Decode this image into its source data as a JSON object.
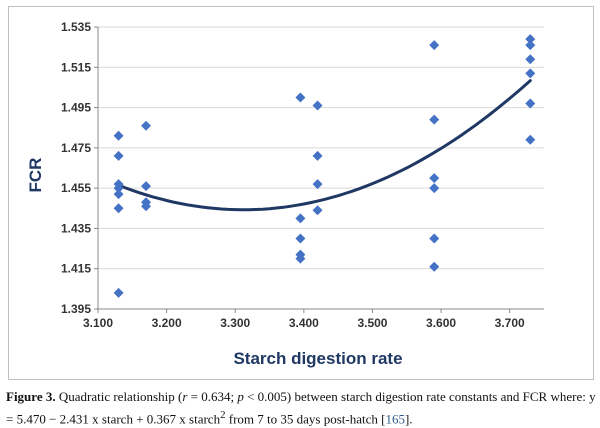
{
  "chart_data": {
    "type": "scatter",
    "xlabel": "Starch digestion rate",
    "ylabel": "FCR",
    "xlim": [
      3.1,
      3.75
    ],
    "ylim": [
      1.395,
      1.535
    ],
    "x_ticks": [
      "3.100",
      "3.200",
      "3.300",
      "3.400",
      "3.500",
      "3.600",
      "3.700"
    ],
    "x_tick_values": [
      3.1,
      3.2,
      3.3,
      3.4,
      3.5,
      3.6,
      3.7
    ],
    "y_ticks": [
      "1.395",
      "1.415",
      "1.435",
      "1.455",
      "1.475",
      "1.495",
      "1.515",
      "1.535"
    ],
    "y_tick_values": [
      1.395,
      1.415,
      1.435,
      1.455,
      1.475,
      1.495,
      1.515,
      1.535
    ],
    "grid": "horizontal",
    "marker_color": "#4472c4",
    "trend_color": "#1f3864",
    "points": [
      {
        "x": 3.13,
        "y": 1.481
      },
      {
        "x": 3.13,
        "y": 1.471
      },
      {
        "x": 3.13,
        "y": 1.457
      },
      {
        "x": 3.13,
        "y": 1.455
      },
      {
        "x": 3.13,
        "y": 1.452
      },
      {
        "x": 3.13,
        "y": 1.445
      },
      {
        "x": 3.13,
        "y": 1.403
      },
      {
        "x": 3.17,
        "y": 1.486
      },
      {
        "x": 3.17,
        "y": 1.456
      },
      {
        "x": 3.17,
        "y": 1.448
      },
      {
        "x": 3.17,
        "y": 1.446
      },
      {
        "x": 3.395,
        "y": 1.5
      },
      {
        "x": 3.395,
        "y": 1.44
      },
      {
        "x": 3.395,
        "y": 1.43
      },
      {
        "x": 3.395,
        "y": 1.422
      },
      {
        "x": 3.395,
        "y": 1.42
      },
      {
        "x": 3.42,
        "y": 1.496
      },
      {
        "x": 3.42,
        "y": 1.471
      },
      {
        "x": 3.42,
        "y": 1.457
      },
      {
        "x": 3.42,
        "y": 1.444
      },
      {
        "x": 3.59,
        "y": 1.526
      },
      {
        "x": 3.59,
        "y": 1.489
      },
      {
        "x": 3.59,
        "y": 1.46
      },
      {
        "x": 3.59,
        "y": 1.455
      },
      {
        "x": 3.59,
        "y": 1.43
      },
      {
        "x": 3.59,
        "y": 1.416
      },
      {
        "x": 3.73,
        "y": 1.529
      },
      {
        "x": 3.73,
        "y": 1.526
      },
      {
        "x": 3.73,
        "y": 1.519
      },
      {
        "x": 3.73,
        "y": 1.512
      },
      {
        "x": 3.73,
        "y": 1.497
      },
      {
        "x": 3.73,
        "y": 1.479
      }
    ],
    "trendline": {
      "type": "quadratic",
      "x_range": [
        3.13,
        3.73
      ],
      "a": 0.367,
      "b": -2.431,
      "c": 5.47
    }
  },
  "caption": {
    "label": "Figure 3.",
    "t1": " Quadratic relationship (",
    "r_var": "r",
    "t2": " = 0.634; ",
    "p_var": "p",
    "t3": " < 0.005) between starch digestion rate constants and FCR where: y = 5.470 − 2.431 x starch + 0.367 x starch",
    "sup": "2",
    "t4": " from 7 to 35 days post-hatch [",
    "ref": "165",
    "t5": "]."
  }
}
